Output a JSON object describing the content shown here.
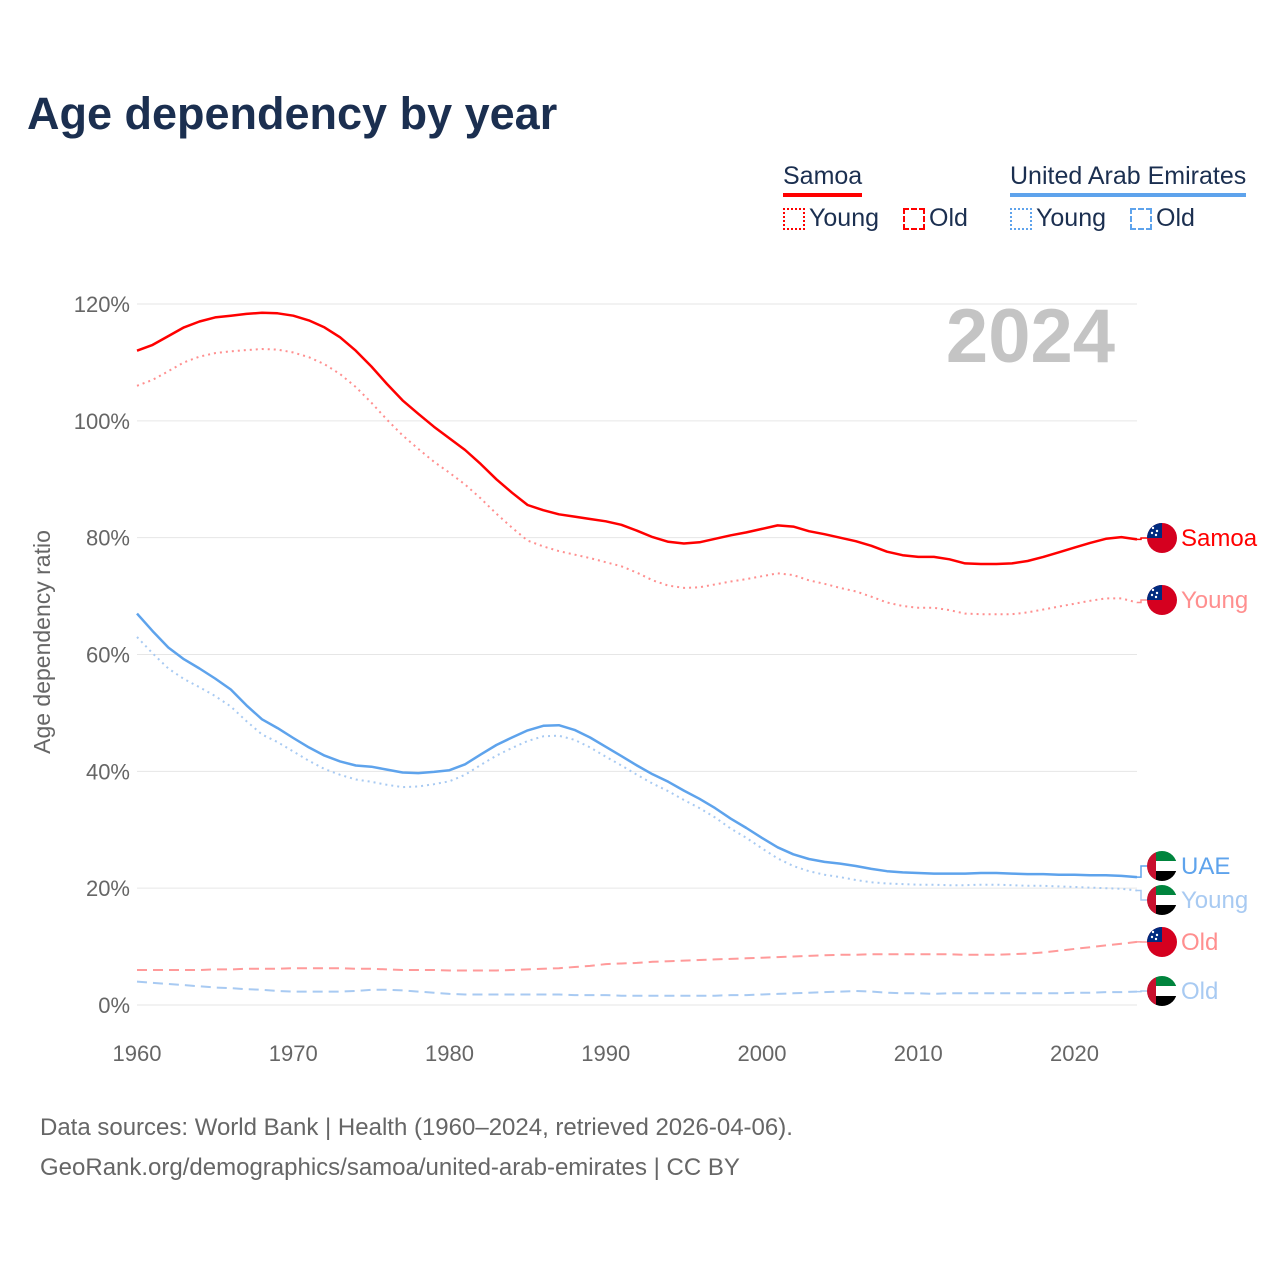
{
  "title": "Age dependency by year",
  "legend": {
    "groups": [
      {
        "country": "Samoa",
        "items": [
          "Young",
          "Old"
        ],
        "color": "#ff0000",
        "light": "#ff8f8f"
      },
      {
        "country": "United Arab Emirates",
        "items": [
          "Young",
          "Old"
        ],
        "color": "#5ea3ec",
        "light": "#a8caf2"
      }
    ]
  },
  "year_watermark": "2024",
  "end_labels": {
    "samoa_total": "Samoa",
    "samoa_young": "Young",
    "uae_total": "UAE",
    "uae_young": "Young",
    "samoa_old": "Old",
    "uae_old": "Old"
  },
  "source": {
    "line1": "Data sources: World Bank | Health (1960–2024, retrieved 2026-04-06).",
    "line2": "GeoRank.org/demographics/samoa/united-arab-emirates | CC BY"
  },
  "chart_data": {
    "type": "line",
    "title": "Age dependency by year",
    "xlabel": "",
    "ylabel": "Age dependency ratio",
    "xlim": [
      1960,
      2024
    ],
    "ylim": [
      0,
      120
    ],
    "x_ticks": [
      "1960",
      "1970",
      "1980",
      "1990",
      "2000",
      "2010",
      "2020"
    ],
    "y_ticks": [
      "0%",
      "20%",
      "40%",
      "60%",
      "80%",
      "100%",
      "120%"
    ],
    "grid": true,
    "x_start": 1960,
    "series": [
      {
        "name": "Samoa",
        "style": "solid",
        "color": "#ff0000",
        "values": [
          112,
          113,
          114.5,
          116,
          117,
          117.7,
          118,
          118.3,
          118.5,
          118.4,
          118,
          117.2,
          116,
          114.3,
          112,
          109.3,
          106.3,
          103.5,
          101.2,
          99,
          97,
          95,
          92.6,
          90,
          87.7,
          85.6,
          84.7,
          84,
          83.6,
          83.2,
          82.8,
          82.2,
          81.2,
          80.1,
          79.3,
          79,
          79.2,
          79.8,
          80.4,
          80.9,
          81.5,
          82.1,
          81.9,
          81.1,
          80.6,
          80,
          79.4,
          78.6,
          77.6,
          77,
          76.7,
          76.7,
          76.3,
          75.6,
          75.5,
          75.5,
          75.6,
          76,
          76.7,
          77.5,
          78.3,
          79.1,
          79.8,
          80.1,
          79.7
        ]
      },
      {
        "name": "Samoa Young",
        "style": "dotted",
        "color": "#ff8f8f",
        "values": [
          106,
          107,
          108.5,
          110,
          111,
          111.6,
          111.9,
          112.1,
          112.3,
          112.2,
          111.7,
          110.9,
          109.7,
          108,
          105.8,
          103.1,
          100.2,
          97.5,
          95.2,
          93,
          91.1,
          89.1,
          86.7,
          84.1,
          81.7,
          79.5,
          78.5,
          77.7,
          77.1,
          76.5,
          75.8,
          75.1,
          74,
          72.7,
          71.8,
          71.4,
          71.5,
          72,
          72.5,
          72.9,
          73.4,
          73.9,
          73.6,
          72.7,
          72.1,
          71.4,
          70.8,
          69.9,
          68.9,
          68.3,
          68,
          68,
          67.6,
          67,
          66.9,
          66.9,
          66.9,
          67.2,
          67.7,
          68.2,
          68.7,
          69.2,
          69.6,
          69.6,
          68.9
        ]
      },
      {
        "name": "Samoa Old",
        "style": "dashed",
        "color": "#ff9a9a",
        "values": [
          6,
          6,
          6,
          6,
          6,
          6.1,
          6.1,
          6.2,
          6.2,
          6.2,
          6.3,
          6.3,
          6.3,
          6.3,
          6.2,
          6.2,
          6.1,
          6,
          6,
          6,
          5.9,
          5.9,
          5.9,
          5.9,
          6,
          6.1,
          6.2,
          6.3,
          6.5,
          6.7,
          7,
          7.1,
          7.2,
          7.4,
          7.5,
          7.6,
          7.7,
          7.8,
          7.9,
          8,
          8.1,
          8.2,
          8.3,
          8.4,
          8.5,
          8.6,
          8.6,
          8.7,
          8.7,
          8.7,
          8.7,
          8.7,
          8.7,
          8.6,
          8.6,
          8.6,
          8.7,
          8.8,
          9,
          9.3,
          9.6,
          9.9,
          10.2,
          10.5,
          10.8
        ]
      },
      {
        "name": "UAE",
        "style": "solid",
        "color": "#5ea3ec",
        "values": [
          67,
          64,
          61.2,
          59.2,
          57.6,
          55.9,
          54,
          51.3,
          48.9,
          47.4,
          45.7,
          44.1,
          42.7,
          41.7,
          41,
          40.8,
          40.3,
          39.8,
          39.7,
          39.9,
          40.2,
          41.2,
          42.9,
          44.5,
          45.8,
          47,
          47.8,
          47.9,
          47.1,
          45.8,
          44.2,
          42.6,
          41,
          39.5,
          38.2,
          36.7,
          35.3,
          33.7,
          31.9,
          30.3,
          28.6,
          27,
          25.8,
          25,
          24.5,
          24.2,
          23.8,
          23.3,
          22.9,
          22.7,
          22.6,
          22.5,
          22.5,
          22.5,
          22.6,
          22.6,
          22.5,
          22.4,
          22.4,
          22.3,
          22.3,
          22.2,
          22.2,
          22.1,
          21.9
        ]
      },
      {
        "name": "UAE Young",
        "style": "dotted",
        "color": "#a8caf2",
        "values": [
          63,
          60.2,
          57.6,
          55.8,
          54.4,
          52.9,
          51.1,
          48.6,
          46.3,
          45,
          43.4,
          41.8,
          40.4,
          39.4,
          38.6,
          38.2,
          37.7,
          37.3,
          37.4,
          37.8,
          38.3,
          39.4,
          41.1,
          42.7,
          44,
          45.2,
          46,
          46.1,
          45.4,
          44.1,
          42.5,
          41,
          39.4,
          37.9,
          36.6,
          35.1,
          33.7,
          32.1,
          30.2,
          28.6,
          26.8,
          25.1,
          23.8,
          22.9,
          22.3,
          21.9,
          21.4,
          21,
          20.8,
          20.7,
          20.6,
          20.6,
          20.5,
          20.5,
          20.6,
          20.6,
          20.5,
          20.4,
          20.4,
          20.3,
          20.2,
          20.1,
          20,
          19.9,
          19.6
        ]
      },
      {
        "name": "UAE Old",
        "style": "dashed",
        "color": "#a8caf2",
        "values": [
          4,
          3.8,
          3.6,
          3.4,
          3.2,
          3,
          2.9,
          2.7,
          2.6,
          2.4,
          2.3,
          2.3,
          2.3,
          2.3,
          2.4,
          2.6,
          2.6,
          2.5,
          2.3,
          2.1,
          1.9,
          1.8,
          1.8,
          1.8,
          1.8,
          1.8,
          1.8,
          1.8,
          1.7,
          1.7,
          1.7,
          1.6,
          1.6,
          1.6,
          1.6,
          1.6,
          1.6,
          1.6,
          1.7,
          1.7,
          1.8,
          1.9,
          2,
          2.1,
          2.2,
          2.3,
          2.4,
          2.3,
          2.1,
          2,
          2,
          1.9,
          2,
          2,
          2,
          2,
          2,
          2,
          2,
          2,
          2.1,
          2.1,
          2.2,
          2.2,
          2.3
        ]
      }
    ]
  }
}
